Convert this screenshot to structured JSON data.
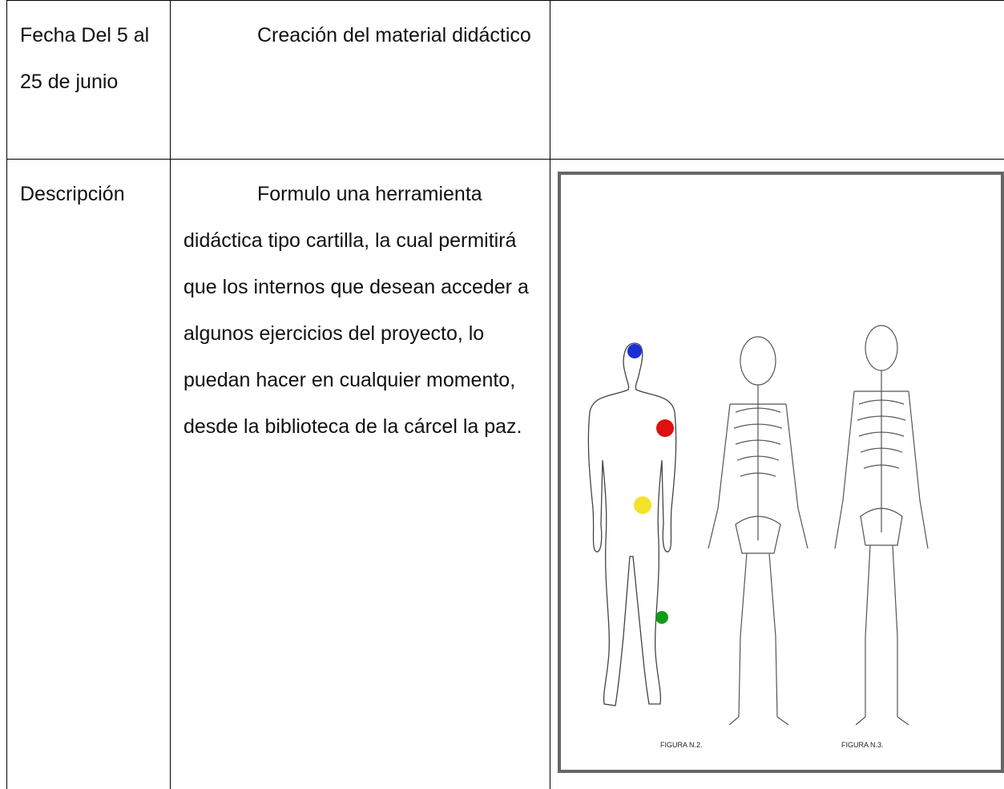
{
  "table": {
    "rows": [
      [
        "Fecha Del 5 al 25 de junio",
        "Creación del material didáctico"
      ],
      [
        "Descripción",
        "Formulo una herramienta didáctica tipo cartilla, la cual permitirá que los internos que desean acceder a algunos ejercicios del proyecto, lo puedan hacer en cualquier momento, desde la biblioteca de la cárcel la paz."
      ]
    ]
  },
  "figure": {
    "labels": [
      "FIGURA N.2.",
      "FIGURA N.3."
    ]
  }
}
